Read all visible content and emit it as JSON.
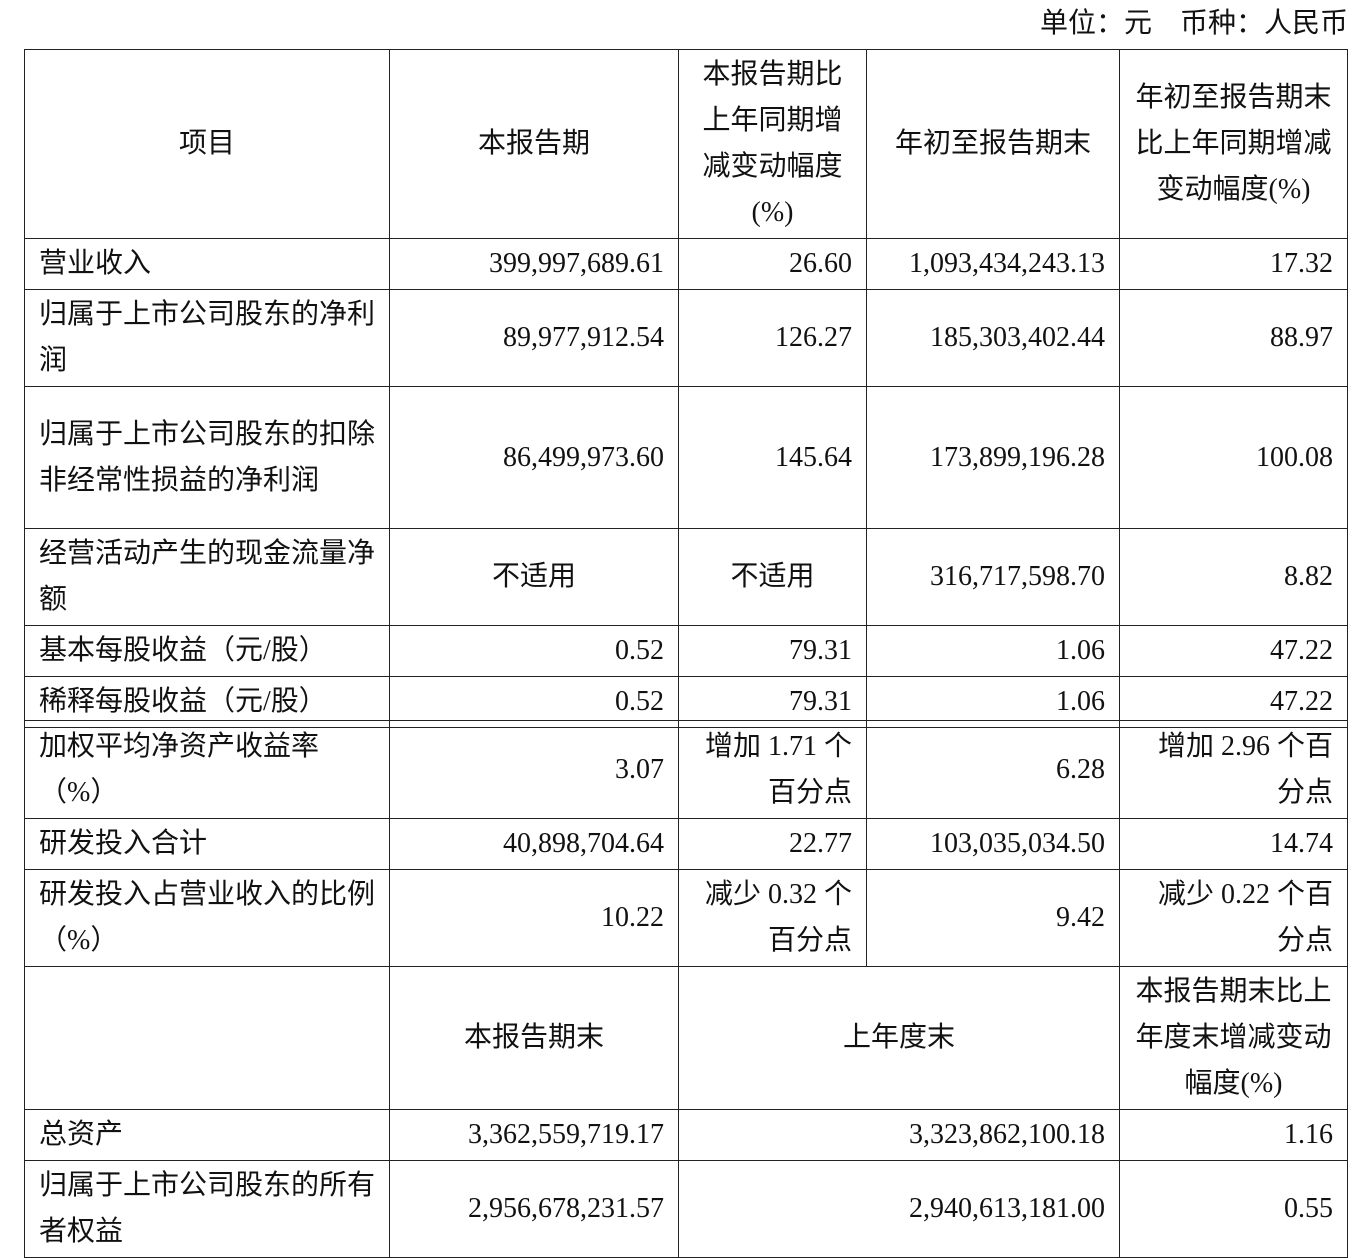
{
  "unit_label": "单位：元　币种：人民币",
  "headers": [
    "项目",
    "本报告期",
    "本报告期比上年同期增减变动幅度(%)",
    "年初至报告期末",
    "年初至报告期末比上年同期增减变动幅度(%)"
  ],
  "rows": [
    [
      "营业收入",
      "399,997,689.61",
      "26.60",
      "1,093,434,243.13",
      "17.32"
    ],
    [
      "归属于上市公司股东的净利润",
      "89,977,912.54",
      "126.27",
      "185,303,402.44",
      "88.97"
    ],
    [
      "归属于上市公司股东的扣除非经常性损益的净利润",
      "86,499,973.60",
      "145.64",
      "173,899,196.28",
      "100.08"
    ],
    [
      "经营活动产生的现金流量净额",
      "不适用",
      "不适用",
      "316,717,598.70",
      "8.82"
    ],
    [
      "基本每股收益（元/股）",
      "0.52",
      "79.31",
      "1.06",
      "47.22"
    ],
    [
      "稀释每股收益（元/股）",
      "0.52",
      "79.31",
      "1.06",
      "47.22"
    ]
  ],
  "rows2": [
    [
      "加权平均净资产收益率（%）",
      "3.07",
      "增加 1.71 个百分点",
      "6.28",
      "增加 2.96 个百分点"
    ],
    [
      "研发投入合计",
      "40,898,704.64",
      "22.77",
      "103,035,034.50",
      "14.74"
    ],
    [
      "研发投入占营业收入的比例（%）",
      "10.22",
      "减少 0.32 个百分点",
      "9.42",
      "减少 0.22 个百分点"
    ]
  ],
  "headers2": [
    "",
    "本报告期末",
    "上年度末",
    "本报告期末比上年度末增减变动幅度(%)"
  ],
  "rows3": [
    [
      "总资产",
      "3,362,559,719.17",
      "3,323,862,100.18",
      "1.16"
    ],
    [
      "归属于上市公司股东的所有者权益",
      "2,956,678,231.57",
      "2,940,613,181.00",
      "0.55"
    ]
  ]
}
